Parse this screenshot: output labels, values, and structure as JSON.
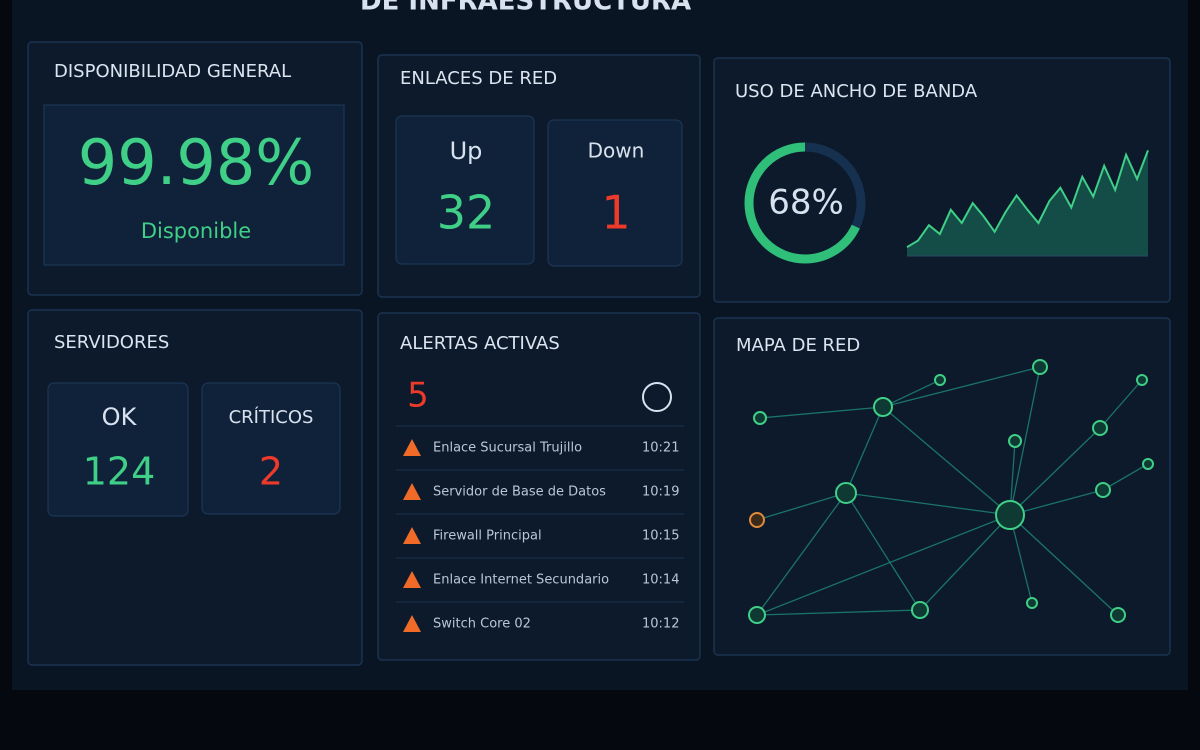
{
  "header": {
    "title": "DE INFRAESTRUCTURA"
  },
  "availability": {
    "title": "DISPONIBILIDAD GENERAL",
    "value": "99.98%",
    "label": "Disponible"
  },
  "links": {
    "title": "ENLACES DE RED",
    "up": {
      "label": "Up",
      "value": 32
    },
    "down": {
      "label": "Down",
      "value": 1
    }
  },
  "bandwidth": {
    "title": "USO DE ANCHO DE BANDA",
    "usage": {
      "value": 68,
      "label": "68%"
    },
    "trend": [
      8,
      14,
      28,
      20,
      42,
      30,
      48,
      36,
      22,
      40,
      55,
      42,
      30,
      50,
      62,
      44,
      72,
      54,
      82,
      60,
      92,
      70,
      96
    ]
  },
  "servers": {
    "title": "SERVIDORES",
    "ok": {
      "label": "OK",
      "value": 124
    },
    "critical": {
      "label": "CRÍTICOS",
      "value": 2
    }
  },
  "alerts": {
    "title": "ALERTAS ACTIVAS",
    "count": 5,
    "items": [
      {
        "name": "Enlace Sucursal Trujillo",
        "time": "10:21"
      },
      {
        "name": "Servidor de Base de Datos",
        "time": "10:19"
      },
      {
        "name": "Firewall Principal",
        "time": "10:15"
      },
      {
        "name": "Enlace Internet Secundario",
        "time": "10:14"
      },
      {
        "name": "Switch Core 02",
        "time": "10:12"
      }
    ]
  },
  "network_map": {
    "title": "MAPA DE RED"
  }
}
